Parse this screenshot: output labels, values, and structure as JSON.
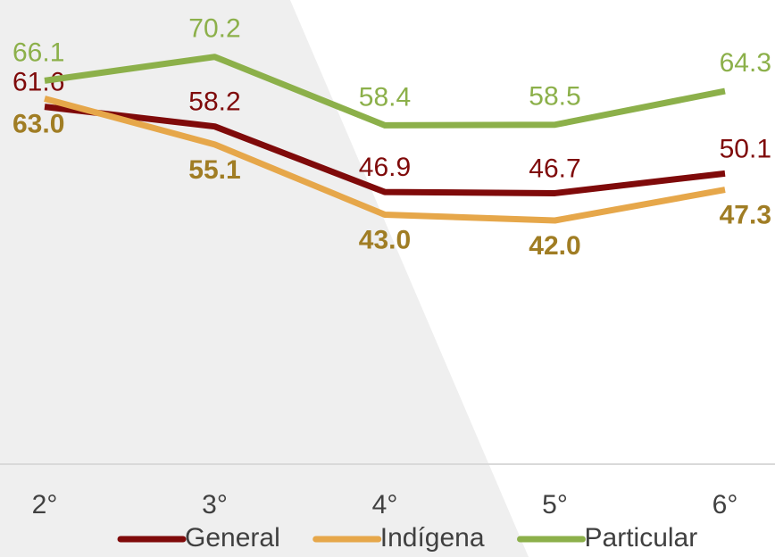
{
  "chart_data": {
    "type": "line",
    "categories": [
      "2°",
      "3°",
      "4°",
      "5°",
      "6°"
    ],
    "ylim": [
      0,
      80
    ],
    "series": [
      {
        "name": "General",
        "color": "#7f0a0a",
        "label_color": "#7f0a0a",
        "values": [
          61.6,
          58.2,
          46.9,
          46.7,
          50.1
        ]
      },
      {
        "name": "Indígena",
        "color": "#e6a74a",
        "label_color": "#a07d24",
        "values": [
          63.0,
          55.1,
          43.0,
          42.0,
          47.3
        ],
        "value_labels": [
          "63.0",
          "55.1",
          "43.0",
          "42.0",
          "47.3"
        ]
      },
      {
        "name": "Particular",
        "color": "#8cb04a",
        "label_color": "#8cb04a",
        "values": [
          66.1,
          70.2,
          58.4,
          58.5,
          64.3
        ]
      }
    ]
  }
}
